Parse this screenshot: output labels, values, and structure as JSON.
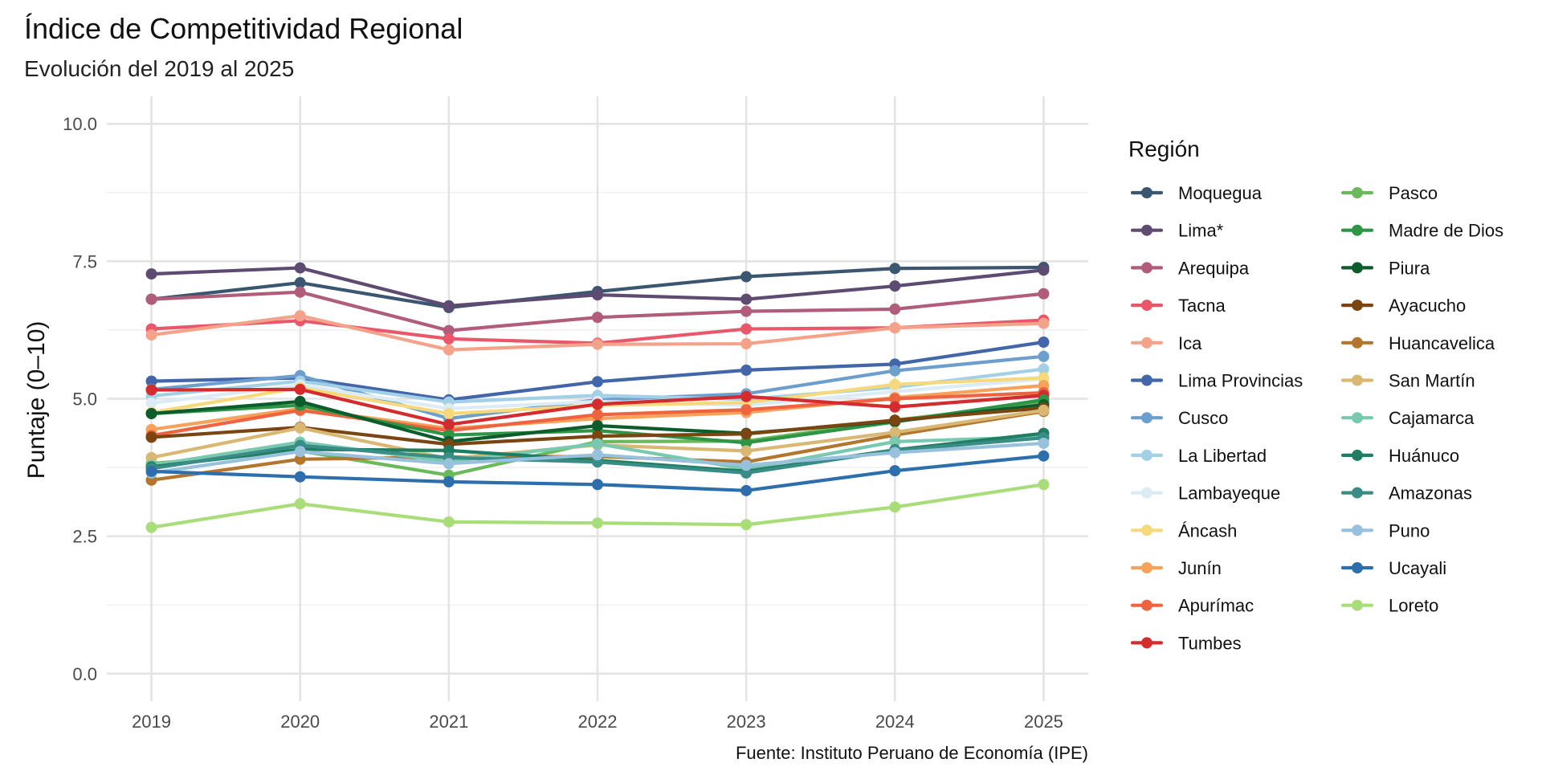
{
  "chart_data": {
    "type": "line",
    "title": "Índice de Competitividad Regional",
    "subtitle": "Evolución del 2019 al 2025",
    "ylabel": "Puntaje (0–10)",
    "xlabel": "",
    "caption": "Fuente: Instituto Peruano de Economía (IPE)",
    "legend_title": "Región",
    "legend_position": "right",
    "grid": true,
    "x": [
      2019,
      2020,
      2021,
      2022,
      2023,
      2024,
      2025
    ],
    "x_tick_labels": [
      "2019",
      "2020",
      "2021",
      "2022",
      "2023",
      "2024",
      "2025"
    ],
    "y_ticks": [
      0.0,
      2.5,
      5.0,
      7.5,
      10.0
    ],
    "y_tick_labels": [
      "0.0",
      "2.5",
      "5.0",
      "7.5",
      "10.0"
    ],
    "ylim": [
      0,
      10
    ],
    "series": [
      {
        "name": "Moquegua",
        "color": "#3b5670",
        "values": [
          6.81,
          7.11,
          6.66,
          6.95,
          7.22,
          7.37,
          7.39
        ]
      },
      {
        "name": "Lima*",
        "color": "#5e4b72",
        "values": [
          7.27,
          7.38,
          6.69,
          6.89,
          6.81,
          7.05,
          7.34
        ]
      },
      {
        "name": "Arequipa",
        "color": "#b05c7a",
        "values": [
          6.81,
          6.94,
          6.24,
          6.48,
          6.59,
          6.63,
          6.91
        ]
      },
      {
        "name": "Tacna",
        "color": "#e9586a",
        "values": [
          6.27,
          6.42,
          6.09,
          6.01,
          6.27,
          6.29,
          6.43
        ]
      },
      {
        "name": "Ica",
        "color": "#f4a38a",
        "values": [
          6.16,
          6.51,
          5.89,
          5.99,
          6.0,
          6.29,
          6.37
        ]
      },
      {
        "name": "Lima Provincias",
        "color": "#4266a8",
        "values": [
          5.32,
          5.38,
          4.98,
          5.31,
          5.52,
          5.63,
          6.03
        ]
      },
      {
        "name": "Cusco",
        "color": "#6c9fcd",
        "values": [
          5.17,
          5.42,
          4.64,
          4.98,
          5.09,
          5.51,
          5.77
        ]
      },
      {
        "name": "La Libertad",
        "color": "#a2d0e6",
        "values": [
          5.05,
          5.32,
          4.94,
          5.06,
          4.99,
          5.21,
          5.54
        ]
      },
      {
        "name": "Lambayeque",
        "color": "#dcecf5",
        "values": [
          4.92,
          5.25,
          4.82,
          4.95,
          4.88,
          5.13,
          5.36
        ]
      },
      {
        "name": "Áncash",
        "color": "#f6d97c",
        "values": [
          4.75,
          5.2,
          4.73,
          4.88,
          4.93,
          5.26,
          5.38
        ]
      },
      {
        "name": "Junín",
        "color": "#f6a25a",
        "values": [
          4.44,
          4.82,
          4.46,
          4.64,
          4.75,
          5.02,
          5.24
        ]
      },
      {
        "name": "Apurímac",
        "color": "#ef6440",
        "values": [
          4.33,
          4.79,
          4.42,
          4.71,
          4.8,
          5.0,
          5.11
        ]
      },
      {
        "name": "Tumbes",
        "color": "#d42b2e",
        "values": [
          5.16,
          5.17,
          4.53,
          4.9,
          5.04,
          4.85,
          5.06
        ]
      },
      {
        "name": "Pasco",
        "color": "#6ab95a",
        "values": [
          3.82,
          4.05,
          3.61,
          4.22,
          4.23,
          4.61,
          4.93
        ]
      },
      {
        "name": "Madre de Dios",
        "color": "#2e9446",
        "values": [
          4.73,
          4.88,
          4.34,
          4.42,
          4.2,
          4.58,
          4.98
        ]
      },
      {
        "name": "Piura",
        "color": "#0d5c2c",
        "values": [
          4.73,
          4.95,
          4.22,
          4.51,
          4.37,
          4.59,
          4.89
        ]
      },
      {
        "name": "Ayacucho",
        "color": "#7a4511",
        "values": [
          4.3,
          4.48,
          4.17,
          4.32,
          4.36,
          4.61,
          4.83
        ]
      },
      {
        "name": "Huancavelica",
        "color": "#b3762f",
        "values": [
          3.52,
          3.9,
          3.94,
          3.95,
          3.85,
          4.34,
          4.77
        ]
      },
      {
        "name": "San Martín",
        "color": "#d9b874",
        "values": [
          3.93,
          4.47,
          3.91,
          4.16,
          4.05,
          4.39,
          4.79
        ]
      },
      {
        "name": "Cajamarca",
        "color": "#78c9b0",
        "values": [
          3.79,
          4.21,
          3.86,
          4.18,
          3.72,
          4.22,
          4.31
        ]
      },
      {
        "name": "Huánuco",
        "color": "#1f7d62",
        "values": [
          3.76,
          4.08,
          4.06,
          3.88,
          3.68,
          4.07,
          4.37
        ]
      },
      {
        "name": "Amazonas",
        "color": "#3a8c86",
        "values": [
          3.73,
          4.15,
          3.93,
          3.85,
          3.65,
          4.06,
          4.29
        ]
      },
      {
        "name": "Puno",
        "color": "#97c1dc",
        "values": [
          3.65,
          4.04,
          3.82,
          3.98,
          3.79,
          4.02,
          4.19
        ]
      },
      {
        "name": "Ucayali",
        "color": "#2d6fac",
        "values": [
          3.68,
          3.58,
          3.49,
          3.44,
          3.33,
          3.69,
          3.96
        ]
      },
      {
        "name": "Loreto",
        "color": "#a8dd7a",
        "values": [
          2.66,
          3.09,
          2.76,
          2.74,
          2.71,
          3.03,
          3.44
        ]
      }
    ]
  }
}
